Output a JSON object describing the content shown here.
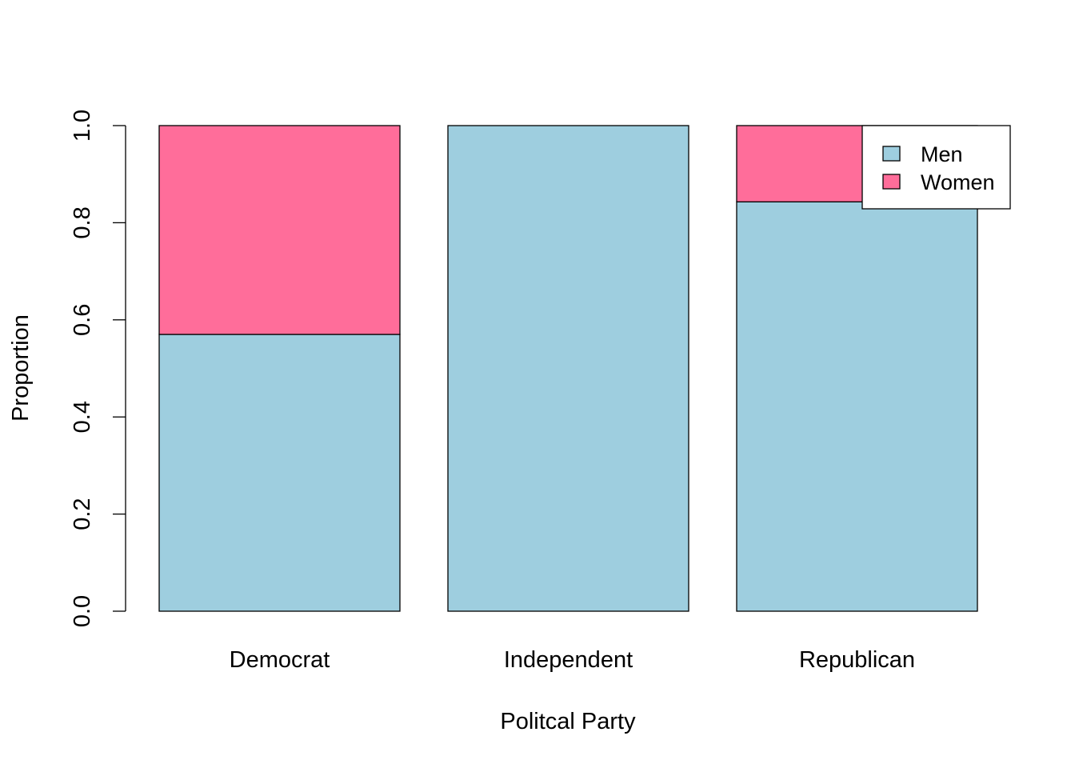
{
  "chart_data": {
    "type": "bar",
    "stacked": true,
    "categories": [
      "Democrat",
      "Independent",
      "Republican"
    ],
    "series": [
      {
        "name": "Men",
        "color": "#9ECEDF",
        "values": [
          0.57,
          1.0,
          0.843
        ]
      },
      {
        "name": "Women",
        "color": "#FF6D9A",
        "values": [
          0.43,
          0.0,
          0.157
        ]
      }
    ],
    "xlabel": "Politcal Party",
    "ylabel": "Proportion",
    "ylim": [
      0,
      1
    ],
    "yticks": [
      "0.0",
      "0.2",
      "0.4",
      "0.6",
      "0.8",
      "1.0"
    ],
    "grid": false,
    "legend": {
      "position": "top-right",
      "entries": [
        "Men",
        "Women"
      ]
    }
  }
}
